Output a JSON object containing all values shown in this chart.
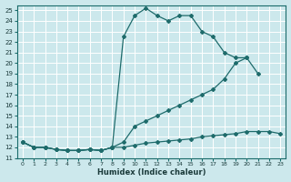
{
  "xlabel": "Humidex (Indice chaleur)",
  "bg_color": "#cce8ec",
  "grid_color": "#b8d8dc",
  "line_color": "#1e6b6b",
  "xlim": [
    -0.5,
    23.5
  ],
  "ylim": [
    11,
    25.5
  ],
  "x_ticks": [
    0,
    1,
    2,
    3,
    4,
    5,
    6,
    7,
    8,
    9,
    10,
    11,
    12,
    13,
    14,
    15,
    16,
    17,
    18,
    19,
    20,
    21,
    22,
    23
  ],
  "y_ticks": [
    11,
    12,
    13,
    14,
    15,
    16,
    17,
    18,
    19,
    20,
    21,
    22,
    23,
    24,
    25
  ],
  "series": [
    {
      "x": [
        0,
        1,
        2,
        3,
        4,
        5,
        6,
        7,
        8,
        9,
        10,
        11,
        12,
        13,
        14,
        15,
        16,
        17,
        18,
        19,
        20,
        21,
        22,
        23
      ],
      "y": [
        12.5,
        12.0,
        12.0,
        11.8,
        11.7,
        11.7,
        11.8,
        11.7,
        12.0,
        12.0,
        12.2,
        12.4,
        12.5,
        12.6,
        12.7,
        12.8,
        13.0,
        13.1,
        13.2,
        13.3,
        13.5,
        13.5,
        13.5,
        13.3
      ]
    },
    {
      "x": [
        0,
        1,
        2,
        3,
        4,
        5,
        6,
        7,
        8,
        9,
        10,
        11,
        12,
        13,
        14,
        15,
        16,
        17,
        18,
        19,
        20,
        21,
        22,
        23
      ],
      "y": [
        12.5,
        12.0,
        12.0,
        11.8,
        11.7,
        11.7,
        11.8,
        11.7,
        12.0,
        12.5,
        14.0,
        14.5,
        15.0,
        15.5,
        16.0,
        16.5,
        17.0,
        17.5,
        18.5,
        20.0,
        20.5,
        19.0,
        null,
        null
      ]
    },
    {
      "x": [
        0,
        1,
        2,
        3,
        4,
        5,
        6,
        7,
        8,
        9,
        10,
        11,
        12,
        13,
        14,
        15,
        16,
        17,
        18,
        19,
        20,
        21,
        22,
        23
      ],
      "y": [
        12.5,
        12.0,
        12.0,
        11.8,
        11.7,
        11.7,
        11.8,
        11.7,
        12.0,
        22.5,
        24.5,
        25.2,
        24.5,
        24.0,
        24.5,
        24.5,
        23.0,
        22.5,
        21.0,
        20.5,
        20.5,
        null,
        null,
        null
      ]
    }
  ]
}
